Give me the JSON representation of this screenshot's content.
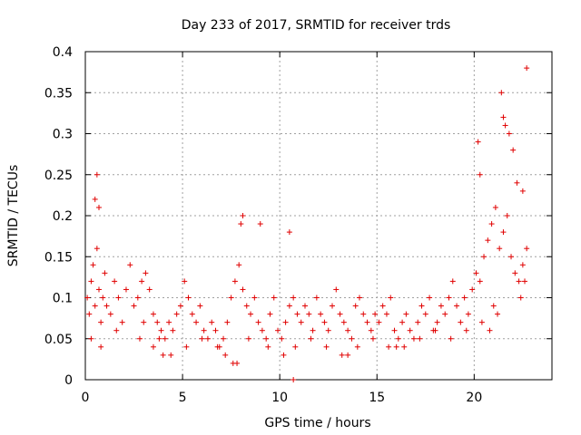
{
  "chart_data": {
    "type": "scatter",
    "title": "Day 233 of 2017, SRMTID for receiver trds",
    "xlabel": "GPS time / hours",
    "ylabel": "SRMTID / TECUs",
    "xlim": [
      0,
      24
    ],
    "ylim": [
      0,
      0.4
    ],
    "x_ticks": [
      "0",
      "5",
      "10",
      "15",
      "20"
    ],
    "y_ticks": [
      "0",
      "0.05",
      "0.1",
      "0.15",
      "0.2",
      "0.25",
      "0.3",
      "0.35",
      "0.4"
    ],
    "grid": true,
    "marker": "+",
    "color": "#e00000",
    "series": [
      {
        "name": "SRMTID",
        "x": [
          0.1,
          0.2,
          0.3,
          0.4,
          0.5,
          0.6,
          0.7,
          0.8,
          0.9,
          1.0,
          1.1,
          1.3,
          1.5,
          1.7,
          1.9,
          2.1,
          2.3,
          2.5,
          2.7,
          2.9,
          3.1,
          3.3,
          3.5,
          3.7,
          3.9,
          4.1,
          4.3,
          4.5,
          4.7,
          4.9,
          5.1,
          5.3,
          5.5,
          5.7,
          5.9,
          6.1,
          6.3,
          6.5,
          6.7,
          6.9,
          7.1,
          7.3,
          7.5,
          7.7,
          7.9,
          8.1,
          8.3,
          8.5,
          8.7,
          8.9,
          9.1,
          9.3,
          9.5,
          9.7,
          9.9,
          10.1,
          10.3,
          10.5,
          10.7,
          10.9,
          11.1,
          11.3,
          11.5,
          11.7,
          11.9,
          12.1,
          12.3,
          12.5,
          12.7,
          12.9,
          13.1,
          13.3,
          13.5,
          13.7,
          13.9,
          14.1,
          14.3,
          14.5,
          14.7,
          14.9,
          15.1,
          15.3,
          15.5,
          15.7,
          15.9,
          16.1,
          16.3,
          16.5,
          16.7,
          16.9,
          17.1,
          17.3,
          17.5,
          17.7,
          17.9,
          18.1,
          18.3,
          18.5,
          18.7,
          18.9,
          19.1,
          19.3,
          19.5,
          19.7,
          19.9,
          20.1,
          20.3,
          20.5,
          20.7,
          20.9,
          21.1,
          21.3,
          21.5,
          21.7,
          21.9,
          22.1,
          22.3,
          22.5,
          22.7,
          0.6,
          0.5,
          0.7,
          8.1,
          8.0,
          9.0,
          10.5,
          21.4,
          21.5,
          22.7,
          22.0,
          21.8,
          20.2,
          20.3,
          21.6,
          22.2,
          22.5,
          0.3,
          0.8,
          1.6,
          2.8,
          3.0,
          3.5,
          4.0,
          4.4,
          5.2,
          6.0,
          6.8,
          7.2,
          7.6,
          8.4,
          9.4,
          10.2,
          10.8,
          11.6,
          12.4,
          13.2,
          14.0,
          14.8,
          15.6,
          16.4,
          17.2,
          18.0,
          18.8,
          19.6,
          20.4,
          20.8,
          21.2,
          21.0,
          22.4,
          22.6,
          10.7,
          7.8,
          13.5,
          16.0,
          3.8
        ],
        "y": [
          0.1,
          0.08,
          0.12,
          0.14,
          0.09,
          0.16,
          0.11,
          0.07,
          0.1,
          0.13,
          0.09,
          0.08,
          0.12,
          0.1,
          0.07,
          0.11,
          0.14,
          0.09,
          0.1,
          0.12,
          0.13,
          0.11,
          0.08,
          0.07,
          0.06,
          0.05,
          0.07,
          0.06,
          0.08,
          0.09,
          0.12,
          0.1,
          0.08,
          0.07,
          0.09,
          0.06,
          0.05,
          0.07,
          0.06,
          0.04,
          0.05,
          0.07,
          0.1,
          0.12,
          0.14,
          0.11,
          0.09,
          0.08,
          0.1,
          0.07,
          0.06,
          0.05,
          0.08,
          0.1,
          0.06,
          0.05,
          0.07,
          0.09,
          0.1,
          0.08,
          0.07,
          0.09,
          0.08,
          0.06,
          0.1,
          0.08,
          0.07,
          0.06,
          0.09,
          0.11,
          0.08,
          0.07,
          0.06,
          0.05,
          0.09,
          0.1,
          0.08,
          0.07,
          0.06,
          0.08,
          0.07,
          0.09,
          0.08,
          0.1,
          0.06,
          0.05,
          0.07,
          0.08,
          0.06,
          0.05,
          0.07,
          0.09,
          0.08,
          0.1,
          0.06,
          0.07,
          0.09,
          0.08,
          0.1,
          0.12,
          0.09,
          0.07,
          0.1,
          0.08,
          0.11,
          0.13,
          0.12,
          0.15,
          0.17,
          0.19,
          0.21,
          0.16,
          0.18,
          0.2,
          0.15,
          0.13,
          0.12,
          0.14,
          0.16,
          0.25,
          0.22,
          0.21,
          0.2,
          0.19,
          0.19,
          0.18,
          0.35,
          0.32,
          0.38,
          0.28,
          0.3,
          0.29,
          0.25,
          0.31,
          0.24,
          0.23,
          0.05,
          0.04,
          0.06,
          0.05,
          0.07,
          0.04,
          0.03,
          0.03,
          0.04,
          0.05,
          0.04,
          0.03,
          0.02,
          0.05,
          0.04,
          0.03,
          0.04,
          0.05,
          0.04,
          0.03,
          0.04,
          0.05,
          0.04,
          0.04,
          0.05,
          0.06,
          0.05,
          0.06,
          0.07,
          0.06,
          0.08,
          0.09,
          0.1,
          0.12,
          0.0,
          0.02,
          0.03,
          0.04,
          0.05
        ]
      }
    ]
  }
}
